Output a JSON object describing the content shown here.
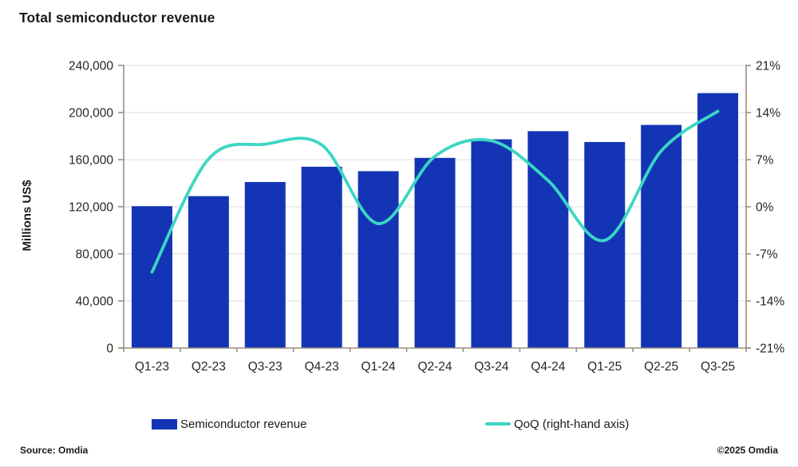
{
  "title": "Total semiconductor revenue",
  "chart_data": {
    "type": "bar+line",
    "categories": [
      "Q1-23",
      "Q2-23",
      "Q3-23",
      "Q4-23",
      "Q1-24",
      "Q2-24",
      "Q3-24",
      "Q4-24",
      "Q1-25",
      "Q2-25",
      "Q3-25"
    ],
    "series": [
      {
        "name": "Semiconductor revenue",
        "type": "bar",
        "axis": "left",
        "unit": "millions US$",
        "values": [
          120500,
          129000,
          141000,
          154000,
          150200,
          161500,
          177300,
          184200,
          175000,
          189500,
          216500
        ]
      },
      {
        "name": "QoQ (right-hand axis)",
        "type": "line",
        "axis": "right",
        "unit": "percent",
        "smooth": true,
        "values": [
          -9.7,
          7.1,
          9.3,
          9.2,
          -2.5,
          7.5,
          9.8,
          3.9,
          -5.0,
          8.3,
          14.2
        ]
      }
    ],
    "left_axis": {
      "label": "Millions US$",
      "min": 0,
      "max": 240000,
      "step": 40000,
      "tick_labels": [
        "240,000",
        "200,000",
        "160,000",
        "120,000",
        "80,000",
        "40,000",
        "0"
      ]
    },
    "right_axis": {
      "min": -21,
      "max": 21,
      "step": 7,
      "tick_labels": [
        "21%",
        "14%",
        "7%",
        "0%",
        "-7%",
        "-14%",
        "-21%"
      ]
    },
    "grid": true,
    "legend_position": "bottom"
  },
  "colors": {
    "bar": "#1335b5",
    "line": "#3cd6c4",
    "axis": "#9a8f82",
    "grid": "#e4e4e4",
    "tick_text": "#262626",
    "title_text": "#1a1a1a"
  },
  "footer": {
    "source": "Source: Omdia",
    "copyright": "©2025 Omdia"
  }
}
